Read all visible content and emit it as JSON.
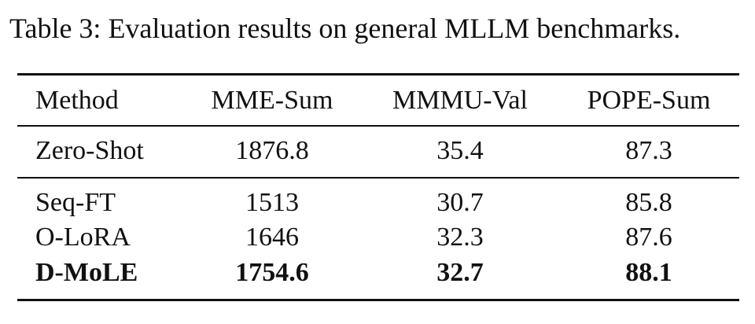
{
  "caption": "Table 3: Evaluation results on general MLLM benchmarks.",
  "table": {
    "header": [
      "Method",
      "MME-Sum",
      "MMMU-Val",
      "POPE-Sum"
    ],
    "rows": [
      [
        "Zero-Shot",
        1876.8,
        35.4,
        87.3
      ],
      [
        "Seq-FT",
        1513,
        30.7,
        85.8
      ],
      [
        "O-LoRA",
        1646,
        32.3,
        87.6
      ],
      [
        "D-MoLE",
        1754.6,
        32.7,
        88.1
      ]
    ]
  }
}
